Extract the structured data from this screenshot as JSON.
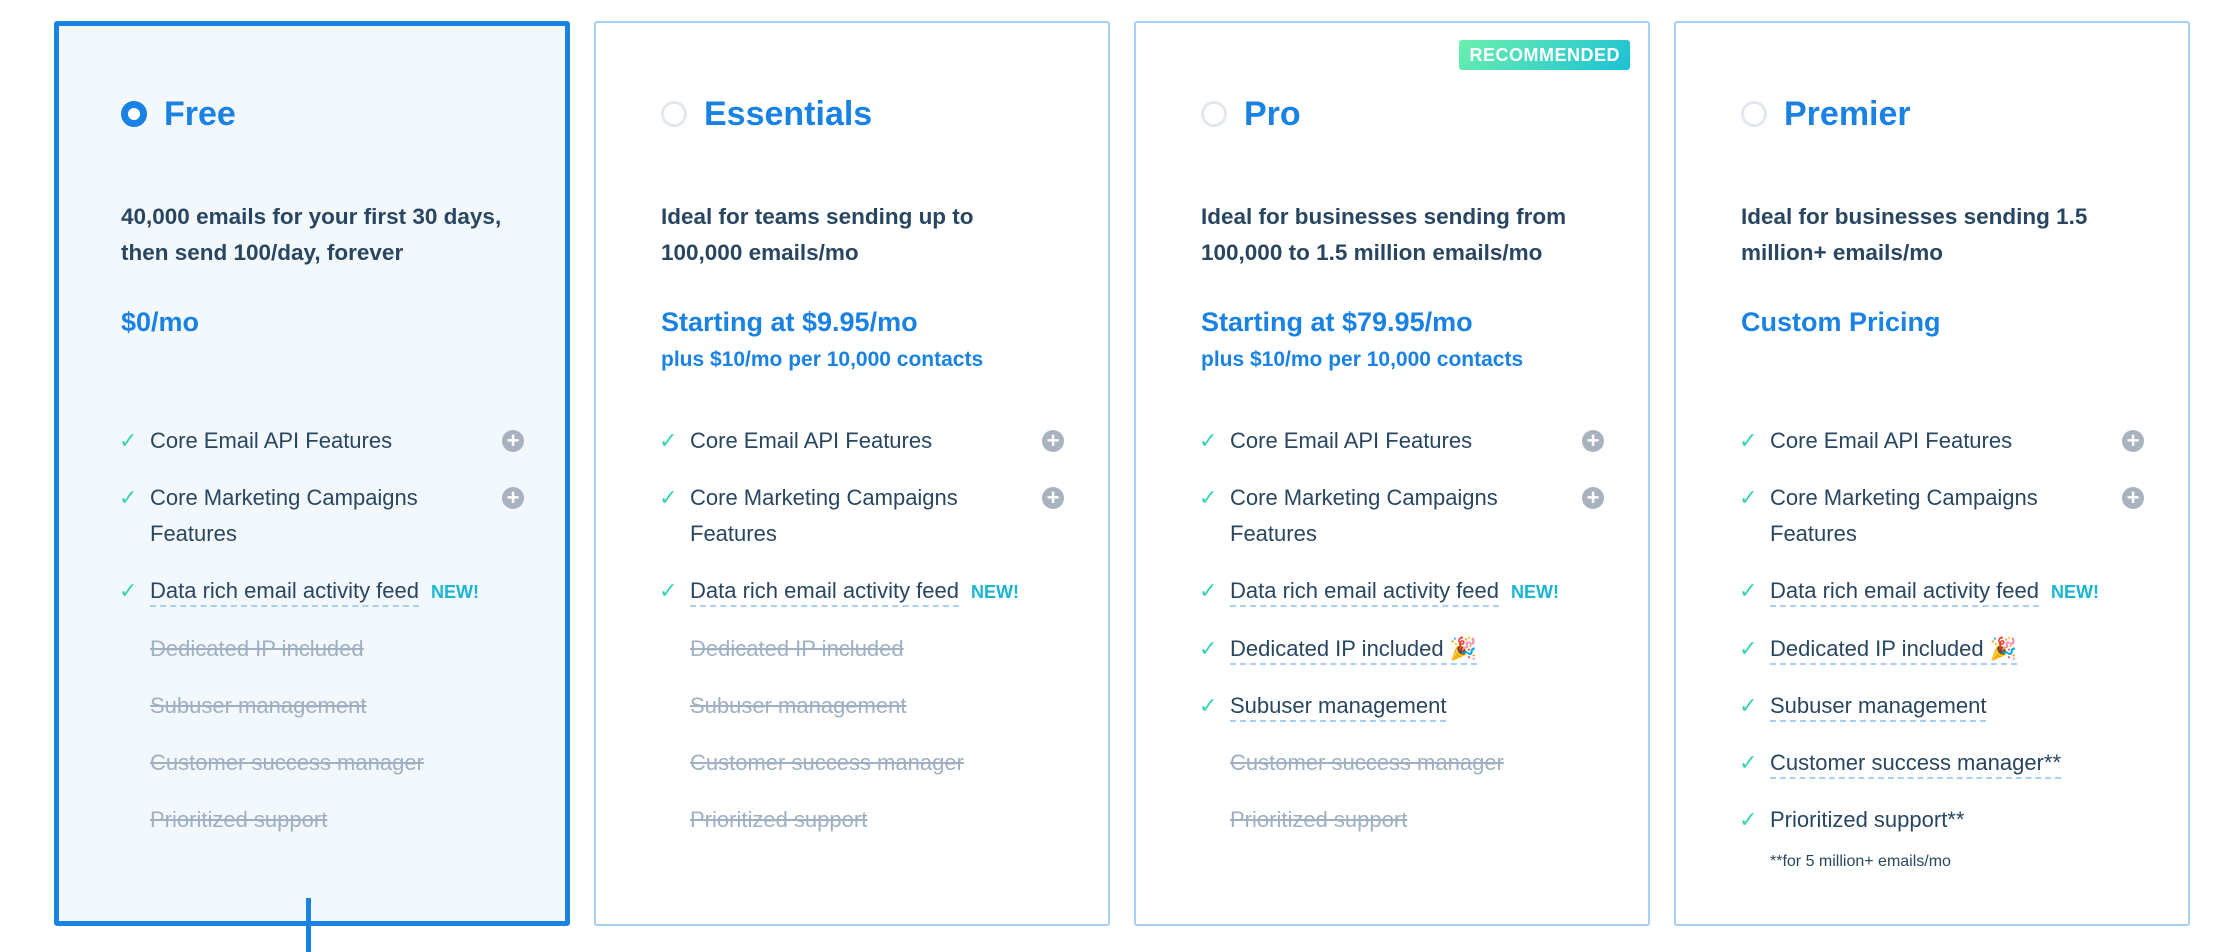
{
  "colors": {
    "brand_blue": "#1a82e2",
    "check_green": "#3ad3b5",
    "new_cyan": "#1bb5d1",
    "card_border": "#a6d0f4",
    "text": "#294661"
  },
  "plans": [
    {
      "name": "Free",
      "selected": true,
      "badge": null,
      "description": "40,000 emails for your first 30 days, then send 100/day, forever",
      "price": "$0/mo",
      "price_sub": null,
      "features": [
        {
          "text": "Core Email API Features",
          "included": true,
          "expandable": true
        },
        {
          "text": "Core Marketing Campaigns Features",
          "included": true,
          "expandable": true
        },
        {
          "text": "Data rich email activity feed",
          "included": true,
          "underline": true,
          "tag": "NEW!"
        },
        {
          "text": "Dedicated IP included",
          "included": false
        },
        {
          "text": "Subuser management",
          "included": false
        },
        {
          "text": "Customer success manager",
          "included": false
        },
        {
          "text": "Prioritized support",
          "included": false
        }
      ],
      "footnote": null
    },
    {
      "name": "Essentials",
      "selected": false,
      "badge": null,
      "description": "Ideal for teams sending up to 100,000 emails/mo",
      "price": "Starting at $9.95/mo",
      "price_sub": "plus $10/mo per 10,000 contacts",
      "features": [
        {
          "text": "Core Email API Features",
          "included": true,
          "expandable": true
        },
        {
          "text": "Core Marketing Campaigns Features",
          "included": true,
          "expandable": true
        },
        {
          "text": "Data rich email activity feed",
          "included": true,
          "underline": true,
          "tag": "NEW!"
        },
        {
          "text": "Dedicated IP included",
          "included": false
        },
        {
          "text": "Subuser management",
          "included": false
        },
        {
          "text": "Customer success manager",
          "included": false
        },
        {
          "text": "Prioritized support",
          "included": false
        }
      ],
      "footnote": null
    },
    {
      "name": "Pro",
      "selected": false,
      "badge": "RECOMMENDED",
      "description": "Ideal for businesses sending from 100,000 to 1.5 million emails/mo",
      "price": "Starting at $79.95/mo",
      "price_sub": "plus $10/mo per 10,000 contacts",
      "features": [
        {
          "text": "Core Email API Features",
          "included": true,
          "expandable": true
        },
        {
          "text": "Core Marketing Campaigns Features",
          "included": true,
          "expandable": true
        },
        {
          "text": "Data rich email activity feed",
          "included": true,
          "underline": true,
          "tag": "NEW!"
        },
        {
          "text": "Dedicated IP included 🎉",
          "included": true,
          "underline": true
        },
        {
          "text": "Subuser management",
          "included": true,
          "underline": true
        },
        {
          "text": "Customer success manager",
          "included": false
        },
        {
          "text": "Prioritized support",
          "included": false
        }
      ],
      "footnote": null
    },
    {
      "name": "Premier",
      "selected": false,
      "badge": null,
      "description": "Ideal for businesses sending 1.5 million+ emails/mo",
      "price": "Custom Pricing",
      "price_sub": null,
      "features": [
        {
          "text": "Core Email API Features",
          "included": true,
          "expandable": true
        },
        {
          "text": "Core Marketing Campaigns Features",
          "included": true,
          "expandable": true
        },
        {
          "text": "Data rich email activity feed",
          "included": true,
          "underline": true,
          "tag": "NEW!"
        },
        {
          "text": "Dedicated IP included 🎉",
          "included": true,
          "underline": true
        },
        {
          "text": "Subuser management",
          "included": true,
          "underline": true
        },
        {
          "text": "Customer success manager**",
          "included": true,
          "underline": true
        },
        {
          "text": "Prioritized support**",
          "included": true
        }
      ],
      "footnote": "**for 5 million+ emails/mo"
    }
  ]
}
